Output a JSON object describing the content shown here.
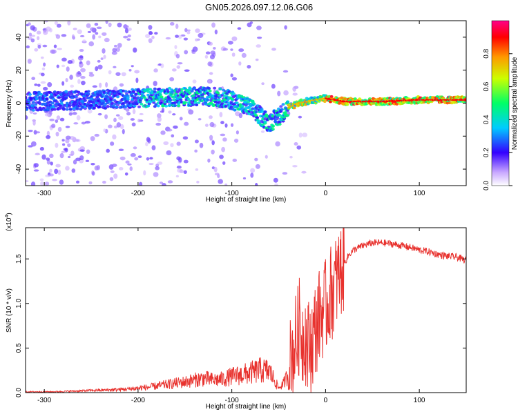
{
  "title": "GN05.2026.097.12.06.G06",
  "chart_data": [
    {
      "type": "heatmap",
      "xlabel": "Height of straight line (km)",
      "ylabel": "Frequency (Hz)",
      "xlim": [
        -320,
        150
      ],
      "ylim": [
        -50,
        50
      ],
      "xticks": [
        -300,
        -200,
        -100,
        0,
        100
      ],
      "yticks": [
        -40,
        -20,
        0,
        20,
        40
      ],
      "colorbar": {
        "label": "Normalized spectral amplitude",
        "range": [
          0,
          1
        ],
        "ticks": [
          "0.0",
          "0.2",
          "0.4",
          "0.6",
          "0.8"
        ]
      },
      "ridge": {
        "height_km": [
          -320,
          -250,
          -200,
          -150,
          -120,
          -100,
          -80,
          -60,
          -50,
          -40,
          -30,
          -20,
          -10,
          0,
          20,
          60,
          100,
          150
        ],
        "frequency_hz": [
          1,
          2,
          3,
          4,
          4,
          2,
          -3,
          -12,
          -8,
          -3,
          0,
          1,
          2,
          3,
          1,
          1,
          2,
          2
        ]
      }
    },
    {
      "type": "line",
      "xlabel": "Height of straight line (km)",
      "ylabel": "SNR (10 * v/v)",
      "y_multiplier": "(x10",
      "y_exponent": "4",
      "y_exponent_close": ")",
      "xlim": [
        -320,
        150
      ],
      "ylim": [
        0,
        1.85
      ],
      "xticks": [
        -300,
        -200,
        -100,
        0,
        100
      ],
      "yticks": [
        "0.0",
        "0.5",
        "1.0",
        "1.5"
      ],
      "series": [
        {
          "name": "SNR",
          "color": "#e8322e",
          "x": [
            -320,
            -290,
            -260,
            -230,
            -210,
            -190,
            -170,
            -150,
            -130,
            -120,
            -110,
            -100,
            -90,
            -80,
            -70,
            -60,
            -55,
            -50,
            -45,
            -40,
            -35,
            -30,
            -27,
            -25,
            -22,
            -20,
            -15,
            -10,
            -5,
            0,
            5,
            10,
            15,
            20,
            25,
            30,
            40,
            50,
            60,
            70,
            80,
            90,
            100,
            110,
            120,
            130,
            140,
            150
          ],
          "y": [
            0.01,
            0.01,
            0.02,
            0.03,
            0.04,
            0.06,
            0.09,
            0.12,
            0.16,
            0.14,
            0.15,
            0.18,
            0.2,
            0.22,
            0.25,
            0.24,
            0.15,
            0.05,
            0.1,
            0.2,
            0.45,
            0.65,
            0.8,
            0.6,
            0.7,
            0.5,
            0.55,
            0.75,
            0.9,
            0.95,
            1.1,
            1.2,
            1.35,
            1.45,
            1.55,
            1.6,
            1.65,
            1.68,
            1.68,
            1.67,
            1.65,
            1.63,
            1.6,
            1.58,
            1.55,
            1.53,
            1.52,
            1.48
          ]
        }
      ]
    }
  ]
}
